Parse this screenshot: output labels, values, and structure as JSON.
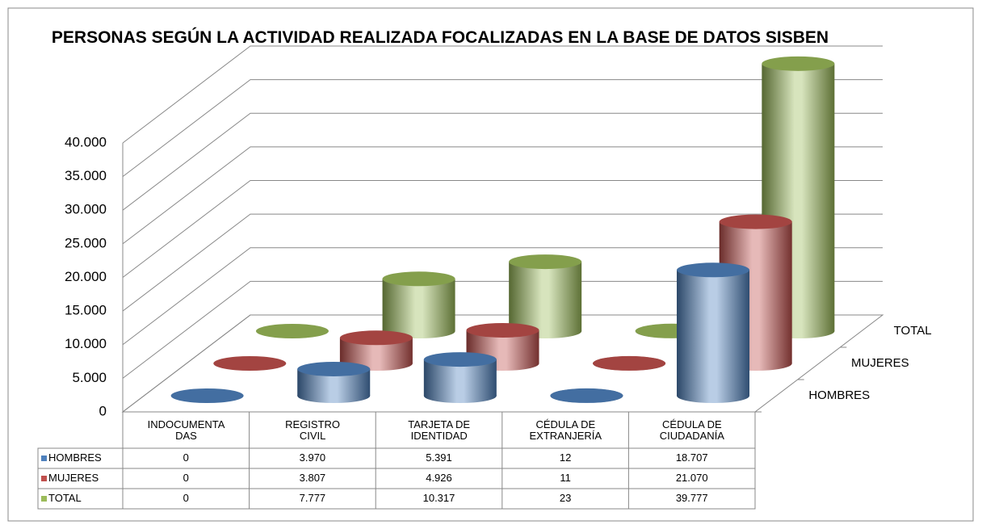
{
  "chart_data": {
    "type": "bar3d",
    "title": "PERSONAS SEGÚN  LA ACTIVIDAD REALIZADA FOCALIZADAS EN LA BASE DE DATOS SISBEN",
    "categories": [
      "INDOCUMENTA DAS",
      "REGISTRO CIVIL",
      "TARJETA DE IDENTIDAD",
      "CÉDULA DE EXTRANJERÍA",
      "CÉDULA DE CIUDADANÍA"
    ],
    "series": [
      {
        "name": "HOMBRES",
        "color": "#4f81bd",
        "values": [
          0,
          3970,
          5391,
          12,
          18707
        ],
        "value_labels": [
          "0",
          "3.970",
          "5.391",
          "12",
          "18.707"
        ]
      },
      {
        "name": "MUJERES",
        "color": "#c0504d",
        "values": [
          0,
          3807,
          4926,
          11,
          21070
        ],
        "value_labels": [
          "0",
          "3.807",
          "4.926",
          "11",
          "21.070"
        ]
      },
      {
        "name": "TOTAL",
        "color": "#9bbb59",
        "values": [
          0,
          7777,
          10317,
          23,
          39777
        ],
        "value_labels": [
          "0",
          "7.777",
          "10.317",
          "23",
          "39.777"
        ]
      }
    ],
    "ylim": [
      0,
      40000
    ],
    "yticks": [
      0,
      {
        "value": 5000,
        "label": "5.000"
      },
      {
        "value": 10000,
        "label": "10.000"
      },
      {
        "value": 15000,
        "label": "15.000"
      },
      {
        "value": 20000,
        "label": "20.000"
      },
      {
        "value": 25000,
        "label": "25.000"
      },
      {
        "value": 30000,
        "label": "30.000"
      },
      {
        "value": 35000,
        "label": "35.000"
      },
      {
        "value": 40000,
        "label": "40.000"
      }
    ],
    "grid": true,
    "data_table": true
  }
}
